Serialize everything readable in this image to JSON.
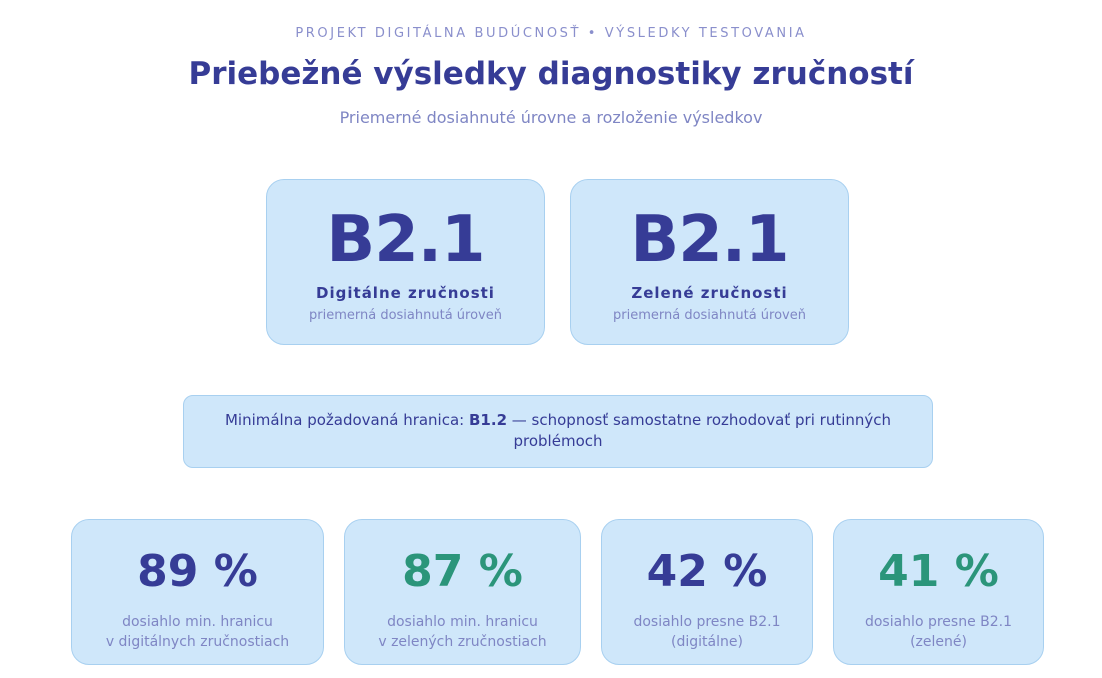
{
  "header": {
    "kicker": "PROJEKT DIGITÁLNA BUDÚCNOSŤ • VÝSLEDKY TESTOVANIA",
    "title": "Priebežné výsledky diagnostiky zručností",
    "subtitle": "Priemerné dosiahnuté úrovne a rozloženie výsledkov"
  },
  "levels": [
    {
      "value": "B2.1",
      "label": "Digitálne zručnosti",
      "sub": "priemerná dosiahnutá úroveň"
    },
    {
      "value": "B2.1",
      "label": "Zelené zručnosti",
      "sub": "priemerná dosiahnutá úroveň"
    }
  ],
  "threshold": {
    "prefix": "Minimálna požadovaná hranica: ",
    "level": "B1.2",
    "suffix": " — schopnosť samostatne rozhodovať pri rutinných problémoch"
  },
  "stats": [
    {
      "value": "89 %",
      "line1": "dosiahlo min. hranicu",
      "line2": "v digitálnych zručnostiach",
      "color": "#363c96"
    },
    {
      "value": "87 %",
      "line1": "dosiahlo min. hranicu",
      "line2": "v zelených zručnostiach",
      "color": "#2b957a"
    },
    {
      "value": "42 %",
      "line1": "dosiahlo presne B2.1",
      "line2": "(digitálne)",
      "color": "#363c96"
    },
    {
      "value": "41 %",
      "line1": "dosiahlo presne B2.1",
      "line2": "(zelené)",
      "color": "#2b957a"
    }
  ]
}
